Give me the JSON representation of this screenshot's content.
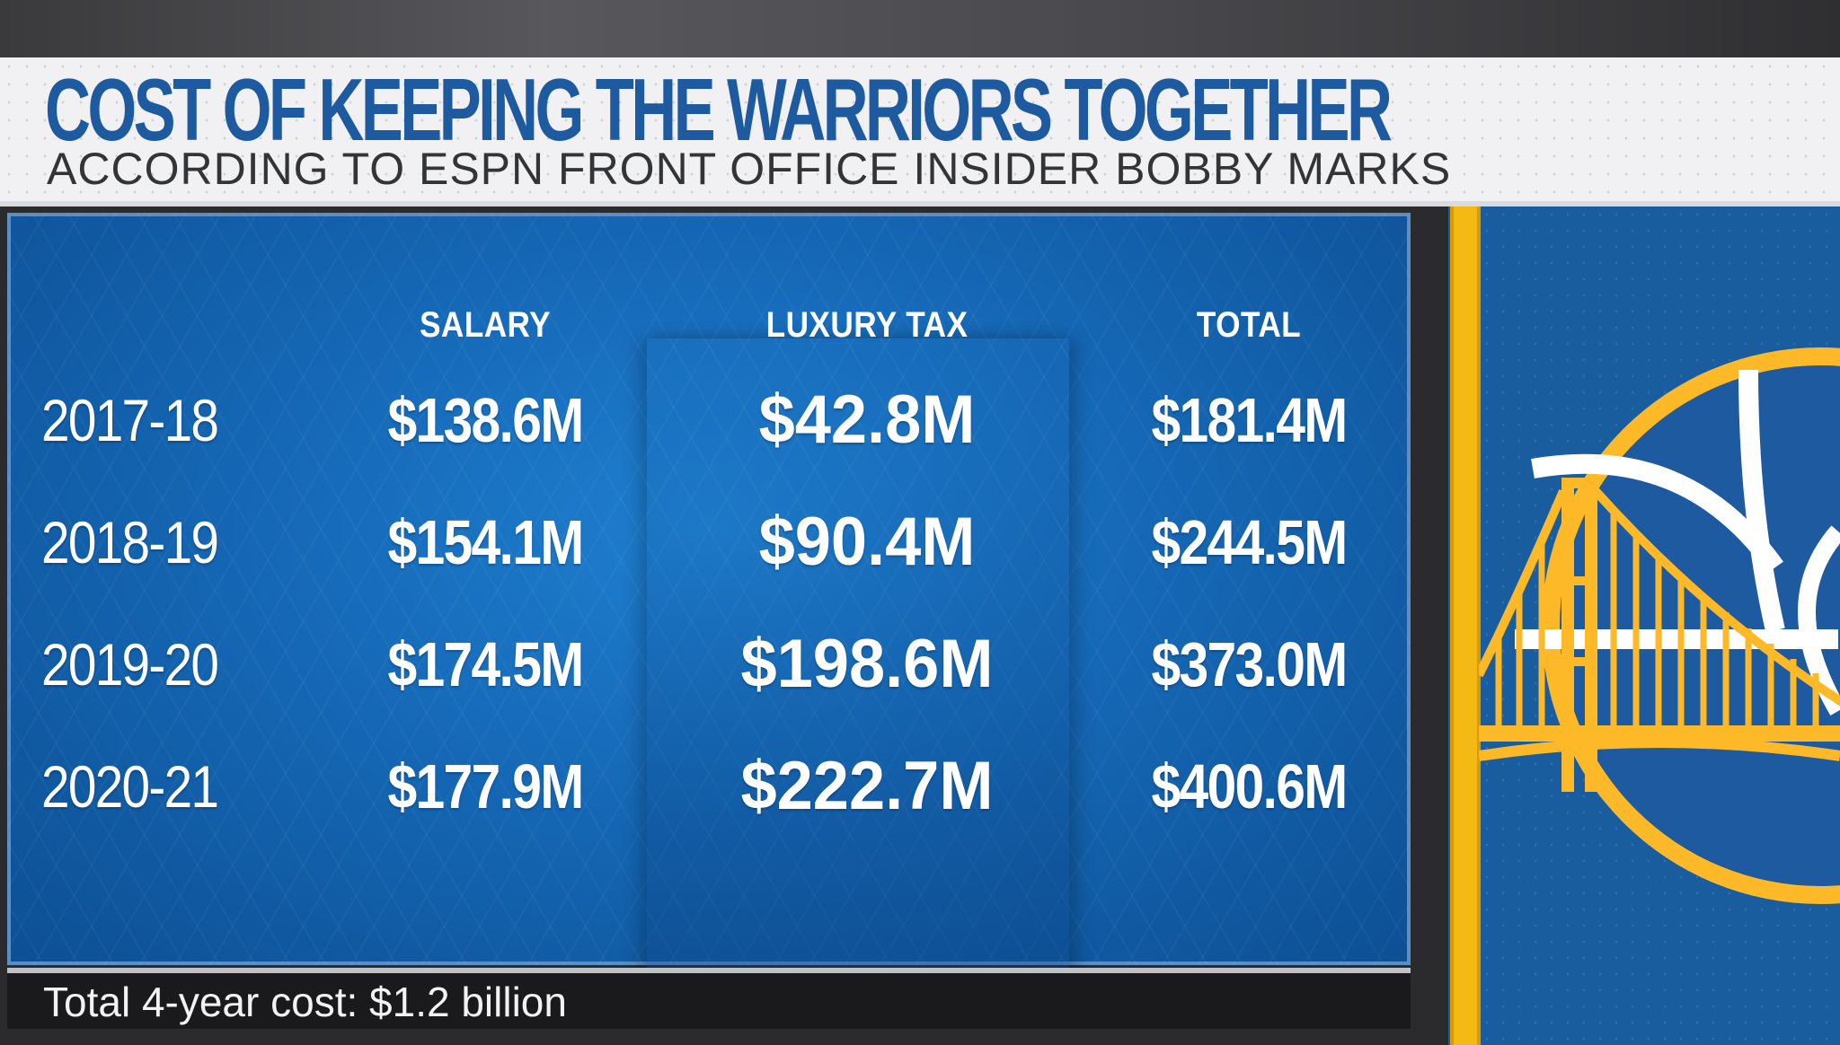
{
  "header": {
    "title": "COST OF KEEPING THE WARRIORS TOGETHER",
    "subtitle": "ACCORDING TO ESPN FRONT OFFICE INSIDER BOBBY MARKS"
  },
  "table": {
    "columns": [
      "SALARY",
      "LUXURY TAX",
      "TOTAL"
    ],
    "rows": [
      {
        "season": "2017-18",
        "salary": "$138.6M",
        "luxury_tax": "$42.8M",
        "total": "$181.4M"
      },
      {
        "season": "2018-19",
        "salary": "$154.1M",
        "luxury_tax": "$90.4M",
        "total": "$244.5M"
      },
      {
        "season": "2019-20",
        "salary": "$174.5M",
        "luxury_tax": "$198.6M",
        "total": "$373.0M"
      },
      {
        "season": "2020-21",
        "salary": "$177.9M",
        "luxury_tax": "$222.7M",
        "total": "$400.6M"
      }
    ]
  },
  "footer": {
    "text": "Total 4-year cost: $1.2 billion"
  },
  "logo": {
    "icon": "warriors-logo-icon",
    "colors": {
      "gold": "#fdb927",
      "blue": "#1d5aa0",
      "white": "#ffffff"
    }
  },
  "colors": {
    "board_blue": "#1568b6",
    "title_blue": "#1d5aa0",
    "header_bg": "#f1f1f3"
  }
}
